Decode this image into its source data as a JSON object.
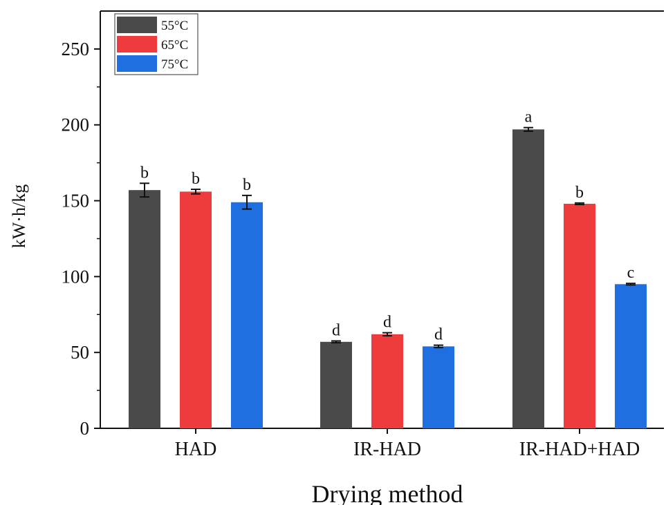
{
  "chart_data": {
    "type": "bar",
    "categories": [
      "HAD",
      "IR-HAD",
      "IR-HAD+HAD"
    ],
    "series": [
      {
        "name": "55°C",
        "color": "#4a4a4a",
        "values": [
          157,
          57,
          197
        ],
        "errors": [
          4.5,
          0.6,
          1.2
        ],
        "labels": [
          "b",
          "d",
          "a"
        ]
      },
      {
        "name": "65°C",
        "color": "#ee3b3b",
        "values": [
          156,
          62,
          148
        ],
        "errors": [
          1.5,
          1.0,
          0.5
        ],
        "labels": [
          "b",
          "d",
          "b"
        ]
      },
      {
        "name": "75°C",
        "color": "#1f6fe0",
        "values": [
          149,
          54,
          95
        ],
        "errors": [
          4.5,
          0.8,
          0.5
        ],
        "labels": [
          "b",
          "d",
          "c"
        ]
      }
    ],
    "xlabel": "Drying method",
    "ylabel": "kW·h/kg",
    "ylim": [
      0,
      275
    ],
    "yticks": [
      0,
      50,
      100,
      150,
      200,
      250
    ],
    "legend_position": "top-left",
    "grid": false
  }
}
